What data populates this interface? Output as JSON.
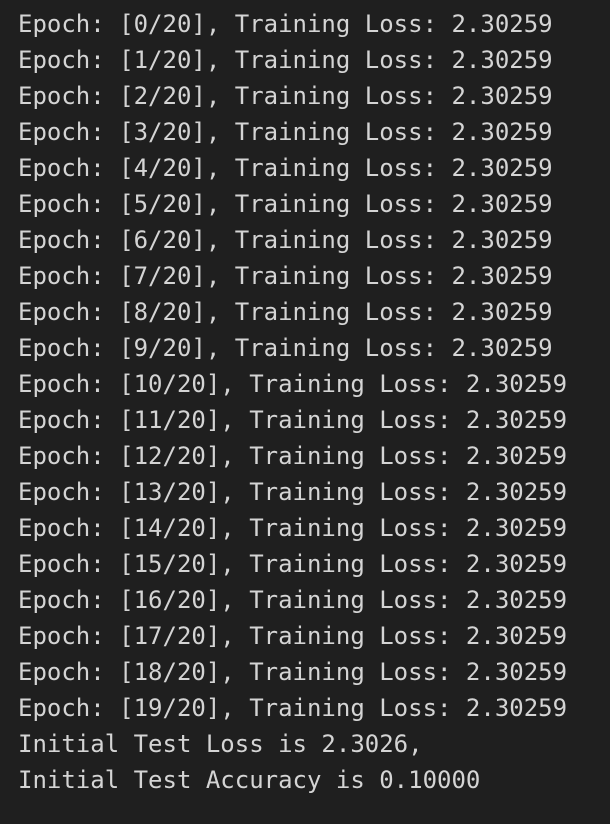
{
  "output": {
    "lines": [
      "Epoch: [0/20], Training Loss: 2.30259",
      "Epoch: [1/20], Training Loss: 2.30259",
      "Epoch: [2/20], Training Loss: 2.30259",
      "Epoch: [3/20], Training Loss: 2.30259",
      "Epoch: [4/20], Training Loss: 2.30259",
      "Epoch: [5/20], Training Loss: 2.30259",
      "Epoch: [6/20], Training Loss: 2.30259",
      "Epoch: [7/20], Training Loss: 2.30259",
      "Epoch: [8/20], Training Loss: 2.30259",
      "Epoch: [9/20], Training Loss: 2.30259",
      "Epoch: [10/20], Training Loss: 2.30259",
      "Epoch: [11/20], Training Loss: 2.30259",
      "Epoch: [12/20], Training Loss: 2.30259",
      "Epoch: [13/20], Training Loss: 2.30259",
      "Epoch: [14/20], Training Loss: 2.30259",
      "Epoch: [15/20], Training Loss: 2.30259",
      "Epoch: [16/20], Training Loss: 2.30259",
      "Epoch: [17/20], Training Loss: 2.30259",
      "Epoch: [18/20], Training Loss: 2.30259",
      "Epoch: [19/20], Training Loss: 2.30259",
      "Initial Test Loss is 2.3026,",
      "Initial Test Accuracy is 0.10000"
    ]
  },
  "colors": {
    "background": "#1f1f1f",
    "text": "#d4d4d4"
  }
}
